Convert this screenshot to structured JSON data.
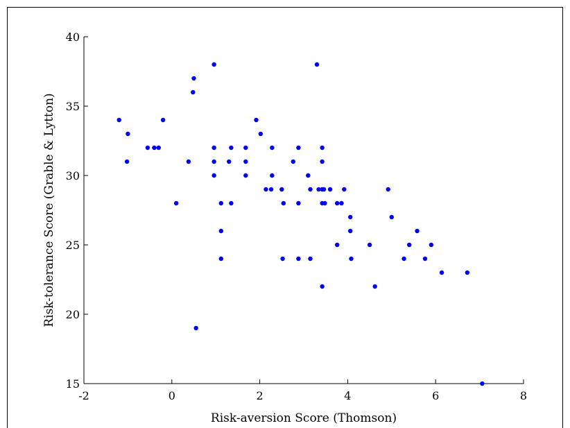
{
  "chart_data": {
    "type": "scatter",
    "xlabel": "Risk-aversion Score (Thomson)",
    "ylabel": "Risk-tolerance Score (Grable & Lytton)",
    "xlim": [
      -2,
      8
    ],
    "ylim": [
      15,
      40
    ],
    "xticks": [
      -2,
      0,
      2,
      4,
      6,
      8
    ],
    "yticks": [
      15,
      20,
      25,
      30,
      35,
      40
    ],
    "grid": false,
    "marker_color": "#0000ff",
    "series": [
      {
        "points": [
          [
            -1.2,
            34
          ],
          [
            -1.0,
            33
          ],
          [
            -1.02,
            31
          ],
          [
            -0.55,
            32
          ],
          [
            -0.4,
            32
          ],
          [
            -0.3,
            32
          ],
          [
            -0.2,
            34
          ],
          [
            0.1,
            28
          ],
          [
            0.38,
            31
          ],
          [
            0.48,
            36
          ],
          [
            0.5,
            37
          ],
          [
            0.55,
            19
          ],
          [
            0.96,
            38
          ],
          [
            0.96,
            32
          ],
          [
            0.96,
            31
          ],
          [
            0.96,
            30
          ],
          [
            1.12,
            28
          ],
          [
            1.12,
            26
          ],
          [
            1.12,
            24
          ],
          [
            1.3,
            31
          ],
          [
            1.35,
            32
          ],
          [
            1.35,
            28
          ],
          [
            1.68,
            32
          ],
          [
            1.68,
            31
          ],
          [
            1.68,
            30
          ],
          [
            1.92,
            34
          ],
          [
            2.02,
            33
          ],
          [
            2.14,
            29
          ],
          [
            2.26,
            29
          ],
          [
            2.28,
            32
          ],
          [
            2.28,
            30
          ],
          [
            2.5,
            29
          ],
          [
            2.52,
            24
          ],
          [
            2.54,
            28
          ],
          [
            2.76,
            31
          ],
          [
            2.88,
            32
          ],
          [
            2.88,
            28
          ],
          [
            2.88,
            24
          ],
          [
            3.1,
            30
          ],
          [
            3.15,
            29
          ],
          [
            3.15,
            24
          ],
          [
            3.3,
            38
          ],
          [
            3.34,
            29
          ],
          [
            3.42,
            32
          ],
          [
            3.42,
            31
          ],
          [
            3.42,
            29
          ],
          [
            3.42,
            28
          ],
          [
            3.42,
            22
          ],
          [
            3.46,
            29
          ],
          [
            3.48,
            28
          ],
          [
            3.6,
            29
          ],
          [
            3.76,
            28
          ],
          [
            3.76,
            25
          ],
          [
            3.86,
            28
          ],
          [
            3.92,
            29
          ],
          [
            4.06,
            27
          ],
          [
            4.06,
            26
          ],
          [
            4.08,
            24
          ],
          [
            4.5,
            25
          ],
          [
            4.62,
            22
          ],
          [
            4.92,
            29
          ],
          [
            5.0,
            27
          ],
          [
            5.28,
            24
          ],
          [
            5.4,
            25
          ],
          [
            5.58,
            26
          ],
          [
            5.76,
            24
          ],
          [
            5.9,
            25
          ],
          [
            6.14,
            23
          ],
          [
            6.72,
            23
          ],
          [
            7.06,
            15
          ]
        ]
      }
    ]
  }
}
